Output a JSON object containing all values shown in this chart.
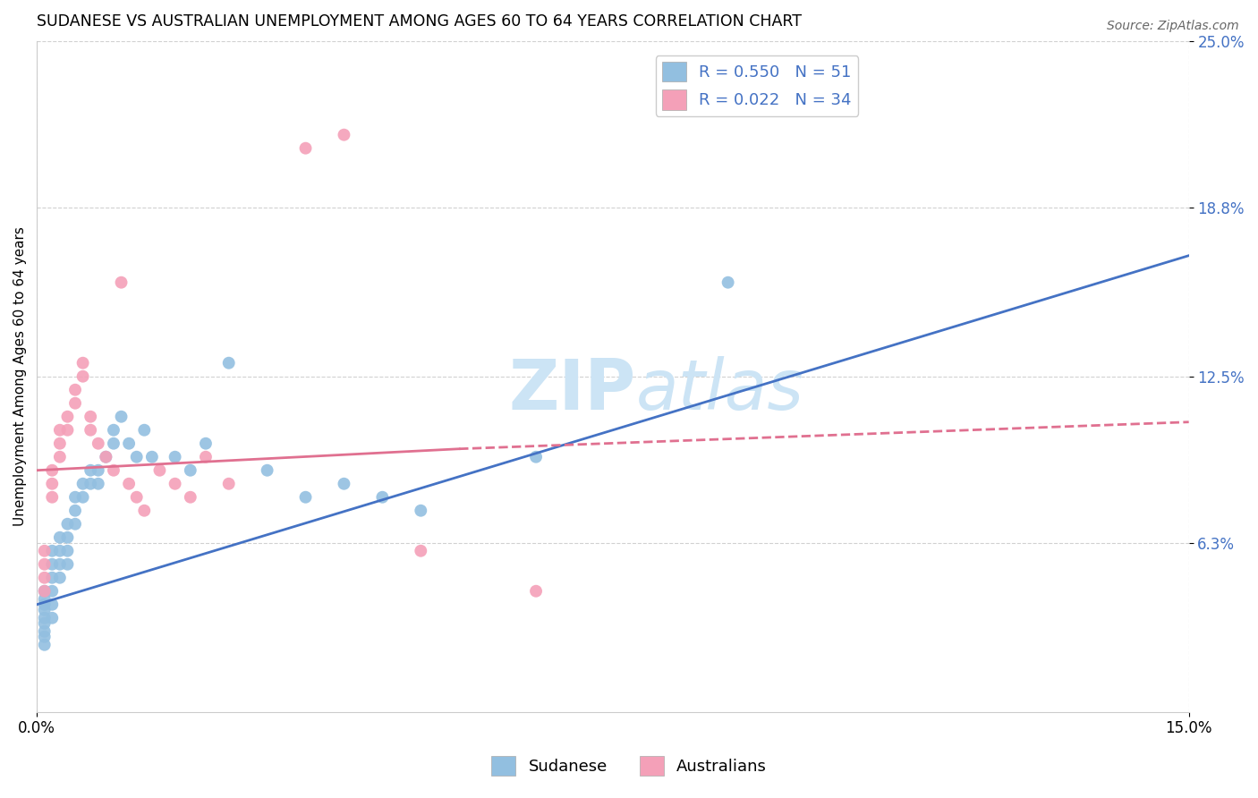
{
  "title": "SUDANESE VS AUSTRALIAN UNEMPLOYMENT AMONG AGES 60 TO 64 YEARS CORRELATION CHART",
  "source": "Source: ZipAtlas.com",
  "ylabel": "Unemployment Among Ages 60 to 64 years",
  "xlim": [
    0.0,
    0.15
  ],
  "ylim": [
    0.0,
    0.25
  ],
  "ytick_labels": [
    "6.3%",
    "12.5%",
    "18.8%",
    "25.0%"
  ],
  "ytick_values": [
    0.063,
    0.125,
    0.188,
    0.25
  ],
  "xtick_labels": [
    "0.0%",
    "15.0%"
  ],
  "xtick_values": [
    0.0,
    0.15
  ],
  "sudanese_color": "#92bfe0",
  "australian_color": "#f4a0b8",
  "trend_sudanese_color": "#4472c4",
  "trend_australian_color": "#e07090",
  "watermark_color": "#cce4f5",
  "sudanese_x": [
    0.001,
    0.001,
    0.001,
    0.001,
    0.001,
    0.001,
    0.001,
    0.001,
    0.001,
    0.002,
    0.002,
    0.002,
    0.002,
    0.002,
    0.002,
    0.003,
    0.003,
    0.003,
    0.003,
    0.004,
    0.004,
    0.004,
    0.004,
    0.005,
    0.005,
    0.005,
    0.006,
    0.006,
    0.007,
    0.007,
    0.008,
    0.008,
    0.009,
    0.01,
    0.01,
    0.011,
    0.012,
    0.013,
    0.014,
    0.015,
    0.018,
    0.02,
    0.022,
    0.025,
    0.03,
    0.035,
    0.04,
    0.045,
    0.05,
    0.065,
    0.09
  ],
  "sudanese_y": [
    0.045,
    0.042,
    0.04,
    0.038,
    0.035,
    0.033,
    0.03,
    0.028,
    0.025,
    0.06,
    0.055,
    0.05,
    0.045,
    0.04,
    0.035,
    0.065,
    0.06,
    0.055,
    0.05,
    0.07,
    0.065,
    0.06,
    0.055,
    0.08,
    0.075,
    0.07,
    0.085,
    0.08,
    0.09,
    0.085,
    0.09,
    0.085,
    0.095,
    0.105,
    0.1,
    0.11,
    0.1,
    0.095,
    0.105,
    0.095,
    0.095,
    0.09,
    0.1,
    0.13,
    0.09,
    0.08,
    0.085,
    0.08,
    0.075,
    0.095,
    0.16
  ],
  "australian_x": [
    0.001,
    0.001,
    0.001,
    0.001,
    0.002,
    0.002,
    0.002,
    0.003,
    0.003,
    0.003,
    0.004,
    0.004,
    0.005,
    0.005,
    0.006,
    0.006,
    0.007,
    0.007,
    0.008,
    0.009,
    0.01,
    0.011,
    0.012,
    0.013,
    0.014,
    0.016,
    0.018,
    0.02,
    0.022,
    0.025,
    0.035,
    0.04,
    0.05,
    0.065
  ],
  "australian_y": [
    0.06,
    0.055,
    0.05,
    0.045,
    0.09,
    0.085,
    0.08,
    0.105,
    0.1,
    0.095,
    0.11,
    0.105,
    0.12,
    0.115,
    0.13,
    0.125,
    0.11,
    0.105,
    0.1,
    0.095,
    0.09,
    0.16,
    0.085,
    0.08,
    0.075,
    0.09,
    0.085,
    0.08,
    0.095,
    0.085,
    0.21,
    0.215,
    0.06,
    0.045
  ],
  "trend_blue_x0": 0.0,
  "trend_blue_y0": 0.04,
  "trend_blue_x1": 0.15,
  "trend_blue_y1": 0.17,
  "trend_pink_solid_x0": 0.0,
  "trend_pink_solid_y0": 0.09,
  "trend_pink_solid_x1": 0.055,
  "trend_pink_solid_y1": 0.098,
  "trend_pink_dash_x0": 0.055,
  "trend_pink_dash_y0": 0.098,
  "trend_pink_dash_x1": 0.15,
  "trend_pink_dash_y1": 0.108
}
